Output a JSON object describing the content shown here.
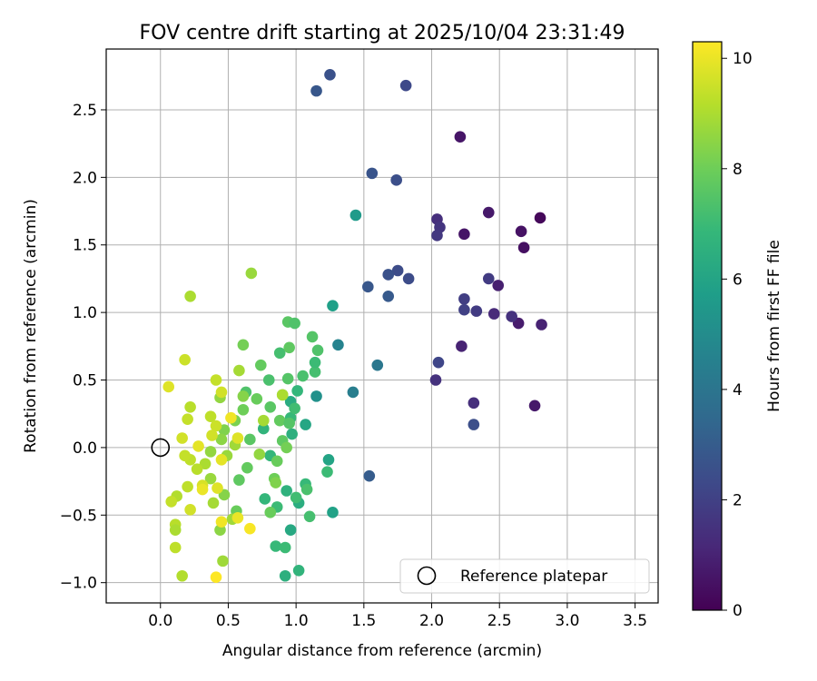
{
  "chart_data": {
    "type": "scatter",
    "title": "FOV centre drift starting at 2025/10/04 23:31:49",
    "xlabel": "Angular distance from reference (arcmin)",
    "ylabel": "Rotation from reference (arcmin)",
    "xlim": [
      -0.4,
      3.67
    ],
    "ylim": [
      -1.15,
      2.95
    ],
    "xticks": [
      0.0,
      0.5,
      1.0,
      1.5,
      2.0,
      2.5,
      3.0,
      3.5
    ],
    "xtick_labels": [
      "0.0",
      "0.5",
      "1.0",
      "1.5",
      "2.0",
      "2.5",
      "3.0",
      "3.5"
    ],
    "yticks": [
      -1.0,
      -0.5,
      0.0,
      0.5,
      1.0,
      1.5,
      2.0,
      2.5
    ],
    "ytick_labels": [
      "−1.0",
      "−0.5",
      "0.0",
      "0.5",
      "1.0",
      "1.5",
      "2.0",
      "2.5"
    ],
    "grid": true,
    "legend": {
      "location": "lower-right",
      "label": "Reference platepar"
    },
    "reference_point": {
      "x": 0.0,
      "y": 0.0
    },
    "colorbar": {
      "label": "Hours from first FF file",
      "range": [
        0,
        10.3
      ],
      "ticks": [
        0,
        2,
        4,
        6,
        8,
        10
      ],
      "tick_labels": [
        "0",
        "2",
        "4",
        "6",
        "8",
        "10"
      ],
      "colormap": [
        "#440154",
        "#482878",
        "#3e4989",
        "#31688e",
        "#26828e",
        "#1f9e89",
        "#35b779",
        "#6ece58",
        "#b5de2b",
        "#fde725"
      ]
    },
    "points": [
      {
        "x": 2.21,
        "y": 2.3,
        "h": 0.6
      },
      {
        "x": 2.8,
        "y": 1.7,
        "h": 0.2
      },
      {
        "x": 2.68,
        "y": 1.48,
        "h": 0.4
      },
      {
        "x": 2.66,
        "y": 1.6,
        "h": 0.5
      },
      {
        "x": 2.42,
        "y": 1.74,
        "h": 0.7
      },
      {
        "x": 2.24,
        "y": 1.58,
        "h": 0.6
      },
      {
        "x": 2.49,
        "y": 1.2,
        "h": 0.9
      },
      {
        "x": 2.81,
        "y": 0.91,
        "h": 1.0
      },
      {
        "x": 2.64,
        "y": 0.92,
        "h": 0.8
      },
      {
        "x": 2.76,
        "y": 0.31,
        "h": 0.7
      },
      {
        "x": 2.46,
        "y": 0.99,
        "h": 1.2
      },
      {
        "x": 2.59,
        "y": 0.97,
        "h": 1.5
      },
      {
        "x": 2.22,
        "y": 0.75,
        "h": 1.0
      },
      {
        "x": 2.31,
        "y": 0.33,
        "h": 1.4
      },
      {
        "x": 2.03,
        "y": 0.5,
        "h": 1.5
      },
      {
        "x": 2.04,
        "y": 1.69,
        "h": 1.4
      },
      {
        "x": 2.06,
        "y": 1.63,
        "h": 1.6
      },
      {
        "x": 2.04,
        "y": 1.57,
        "h": 1.7
      },
      {
        "x": 2.24,
        "y": 1.1,
        "h": 1.9
      },
      {
        "x": 2.24,
        "y": 1.02,
        "h": 2.0
      },
      {
        "x": 2.33,
        "y": 1.01,
        "h": 1.8
      },
      {
        "x": 2.42,
        "y": 1.25,
        "h": 1.8
      },
      {
        "x": 2.05,
        "y": 0.63,
        "h": 2.2
      },
      {
        "x": 2.31,
        "y": 0.17,
        "h": 2.5
      },
      {
        "x": 1.81,
        "y": 2.68,
        "h": 2.3
      },
      {
        "x": 1.25,
        "y": 2.76,
        "h": 2.6
      },
      {
        "x": 1.15,
        "y": 2.64,
        "h": 2.8
      },
      {
        "x": 1.56,
        "y": 2.03,
        "h": 2.7
      },
      {
        "x": 1.74,
        "y": 1.98,
        "h": 2.5
      },
      {
        "x": 1.75,
        "y": 1.31,
        "h": 2.4
      },
      {
        "x": 1.68,
        "y": 1.28,
        "h": 2.6
      },
      {
        "x": 1.83,
        "y": 1.25,
        "h": 2.4
      },
      {
        "x": 1.53,
        "y": 1.19,
        "h": 2.8
      },
      {
        "x": 1.68,
        "y": 1.12,
        "h": 2.9
      },
      {
        "x": 1.54,
        "y": -0.21,
        "h": 3.0
      },
      {
        "x": 1.6,
        "y": 0.61,
        "h": 4.1
      },
      {
        "x": 1.42,
        "y": 0.41,
        "h": 4.4
      },
      {
        "x": 1.31,
        "y": 0.76,
        "h": 4.6
      },
      {
        "x": 1.44,
        "y": 1.72,
        "h": 5.6
      },
      {
        "x": 1.15,
        "y": 0.38,
        "h": 5.2
      },
      {
        "x": 1.27,
        "y": 1.05,
        "h": 5.8
      },
      {
        "x": 1.27,
        "y": -0.48,
        "h": 5.9
      },
      {
        "x": 1.24,
        "y": -0.09,
        "h": 6.0
      },
      {
        "x": 1.07,
        "y": 0.17,
        "h": 6.1
      },
      {
        "x": 0.96,
        "y": 0.34,
        "h": 6.3
      },
      {
        "x": 0.97,
        "y": 0.1,
        "h": 6.5
      },
      {
        "x": 0.93,
        "y": -0.32,
        "h": 6.6
      },
      {
        "x": 1.02,
        "y": -0.41,
        "h": 6.4
      },
      {
        "x": 0.96,
        "y": -0.61,
        "h": 6.2
      },
      {
        "x": 0.92,
        "y": -0.95,
        "h": 6.5
      },
      {
        "x": 1.02,
        "y": -0.91,
        "h": 6.7
      },
      {
        "x": 0.85,
        "y": -0.73,
        "h": 6.9
      },
      {
        "x": 0.92,
        "y": -0.74,
        "h": 7.0
      },
      {
        "x": 0.77,
        "y": -0.38,
        "h": 6.8
      },
      {
        "x": 0.86,
        "y": -0.44,
        "h": 7.0
      },
      {
        "x": 1.1,
        "y": -0.51,
        "h": 7.2
      },
      {
        "x": 1.07,
        "y": -0.27,
        "h": 6.9
      },
      {
        "x": 1.0,
        "y": -0.37,
        "h": 7.1
      },
      {
        "x": 1.08,
        "y": -0.31,
        "h": 7.3
      },
      {
        "x": 1.23,
        "y": -0.18,
        "h": 7.0
      },
      {
        "x": 0.81,
        "y": -0.06,
        "h": 6.8
      },
      {
        "x": 0.76,
        "y": 0.14,
        "h": 6.7
      },
      {
        "x": 0.96,
        "y": 0.22,
        "h": 6.9
      },
      {
        "x": 0.99,
        "y": 0.29,
        "h": 7.1
      },
      {
        "x": 1.01,
        "y": 0.42,
        "h": 6.8
      },
      {
        "x": 1.05,
        "y": 0.53,
        "h": 7.3
      },
      {
        "x": 1.14,
        "y": 0.56,
        "h": 7.2
      },
      {
        "x": 1.14,
        "y": 0.63,
        "h": 7.0
      },
      {
        "x": 1.16,
        "y": 0.72,
        "h": 7.4
      },
      {
        "x": 1.12,
        "y": 0.82,
        "h": 7.5
      },
      {
        "x": 0.94,
        "y": 0.93,
        "h": 7.6
      },
      {
        "x": 0.99,
        "y": 0.92,
        "h": 7.4
      },
      {
        "x": 0.88,
        "y": 0.7,
        "h": 7.2
      },
      {
        "x": 0.95,
        "y": 0.74,
        "h": 7.7
      },
      {
        "x": 0.94,
        "y": 0.51,
        "h": 7.5
      },
      {
        "x": 0.8,
        "y": 0.5,
        "h": 7.3
      },
      {
        "x": 0.74,
        "y": 0.61,
        "h": 7.8
      },
      {
        "x": 0.71,
        "y": 0.36,
        "h": 7.9
      },
      {
        "x": 0.81,
        "y": 0.3,
        "h": 7.6
      },
      {
        "x": 0.9,
        "y": 0.39,
        "h": 8.0
      },
      {
        "x": 0.88,
        "y": 0.2,
        "h": 7.8
      },
      {
        "x": 0.95,
        "y": 0.18,
        "h": 7.5
      },
      {
        "x": 0.9,
        "y": 0.05,
        "h": 7.7
      },
      {
        "x": 0.93,
        "y": 0.0,
        "h": 8.1
      },
      {
        "x": 0.86,
        "y": -0.1,
        "h": 7.9
      },
      {
        "x": 0.84,
        "y": -0.23,
        "h": 8.0
      },
      {
        "x": 0.85,
        "y": -0.26,
        "h": 8.3
      },
      {
        "x": 0.81,
        "y": -0.48,
        "h": 7.9
      },
      {
        "x": 0.66,
        "y": 0.06,
        "h": 7.6
      },
      {
        "x": 0.64,
        "y": -0.15,
        "h": 7.8
      },
      {
        "x": 0.58,
        "y": -0.24,
        "h": 7.7
      },
      {
        "x": 0.56,
        "y": -0.47,
        "h": 7.9
      },
      {
        "x": 0.63,
        "y": 0.41,
        "h": 7.4
      },
      {
        "x": 0.61,
        "y": 0.28,
        "h": 8.0
      },
      {
        "x": 0.61,
        "y": 0.76,
        "h": 8.1
      },
      {
        "x": 0.61,
        "y": 0.38,
        "h": 8.4
      },
      {
        "x": 0.55,
        "y": 0.2,
        "h": 8.2
      },
      {
        "x": 0.47,
        "y": 0.13,
        "h": 8.3
      },
      {
        "x": 0.44,
        "y": 0.37,
        "h": 8.6
      },
      {
        "x": 0.45,
        "y": 0.06,
        "h": 8.5
      },
      {
        "x": 0.49,
        "y": -0.06,
        "h": 8.7
      },
      {
        "x": 0.55,
        "y": 0.02,
        "h": 8.8
      },
      {
        "x": 0.58,
        "y": 0.57,
        "h": 8.9
      },
      {
        "x": 0.67,
        "y": 1.29,
        "h": 8.7
      },
      {
        "x": 0.73,
        "y": -0.05,
        "h": 8.6
      },
      {
        "x": 0.76,
        "y": 0.2,
        "h": 8.9
      },
      {
        "x": 0.9,
        "y": 0.39,
        "h": 9.0
      },
      {
        "x": 0.53,
        "y": -0.53,
        "h": 8.8
      },
      {
        "x": 0.47,
        "y": -0.35,
        "h": 8.4
      },
      {
        "x": 0.44,
        "y": -0.61,
        "h": 8.5
      },
      {
        "x": 0.46,
        "y": -0.84,
        "h": 8.8
      },
      {
        "x": 0.39,
        "y": -0.41,
        "h": 8.9
      },
      {
        "x": 0.37,
        "y": -0.23,
        "h": 8.7
      },
      {
        "x": 0.33,
        "y": -0.12,
        "h": 9.0
      },
      {
        "x": 0.37,
        "y": -0.03,
        "h": 8.6
      },
      {
        "x": 0.27,
        "y": -0.16,
        "h": 9.2
      },
      {
        "x": 0.22,
        "y": -0.09,
        "h": 9.3
      },
      {
        "x": 0.41,
        "y": 0.5,
        "h": 9.4
      },
      {
        "x": 0.45,
        "y": 0.41,
        "h": 9.6
      },
      {
        "x": 0.37,
        "y": 0.23,
        "h": 9.3
      },
      {
        "x": 0.41,
        "y": 0.16,
        "h": 9.5
      },
      {
        "x": 0.38,
        "y": 0.09,
        "h": 9.6
      },
      {
        "x": 0.2,
        "y": 0.21,
        "h": 9.4
      },
      {
        "x": 0.22,
        "y": 0.3,
        "h": 9.2
      },
      {
        "x": 0.22,
        "y": 1.12,
        "h": 9.0
      },
      {
        "x": 0.18,
        "y": 0.65,
        "h": 9.5
      },
      {
        "x": 0.06,
        "y": 0.45,
        "h": 9.8
      },
      {
        "x": 0.16,
        "y": 0.07,
        "h": 9.6
      },
      {
        "x": 0.18,
        "y": -0.06,
        "h": 9.4
      },
      {
        "x": 0.28,
        "y": 0.01,
        "h": 9.9
      },
      {
        "x": 0.31,
        "y": -0.28,
        "h": 9.7
      },
      {
        "x": 0.31,
        "y": -0.31,
        "h": 10.0
      },
      {
        "x": 0.42,
        "y": -0.3,
        "h": 9.8
      },
      {
        "x": 0.45,
        "y": -0.09,
        "h": 9.9
      },
      {
        "x": 0.52,
        "y": 0.22,
        "h": 10.1
      },
      {
        "x": 0.57,
        "y": 0.07,
        "h": 9.8
      },
      {
        "x": 0.57,
        "y": -0.52,
        "h": 10.0
      },
      {
        "x": 0.66,
        "y": -0.6,
        "h": 10.2
      },
      {
        "x": 0.45,
        "y": -0.55,
        "h": 10.1
      },
      {
        "x": 0.41,
        "y": -0.96,
        "h": 10.3
      },
      {
        "x": 0.22,
        "y": -0.46,
        "h": 9.6
      },
      {
        "x": 0.2,
        "y": -0.29,
        "h": 9.3
      },
      {
        "x": 0.12,
        "y": -0.36,
        "h": 9.1
      },
      {
        "x": 0.08,
        "y": -0.4,
        "h": 9.4
      },
      {
        "x": 0.11,
        "y": -0.57,
        "h": 9.2
      },
      {
        "x": 0.11,
        "y": -0.61,
        "h": 9.0
      },
      {
        "x": 0.11,
        "y": -0.74,
        "h": 9.3
      },
      {
        "x": 0.16,
        "y": -0.95,
        "h": 9.1
      }
    ]
  }
}
